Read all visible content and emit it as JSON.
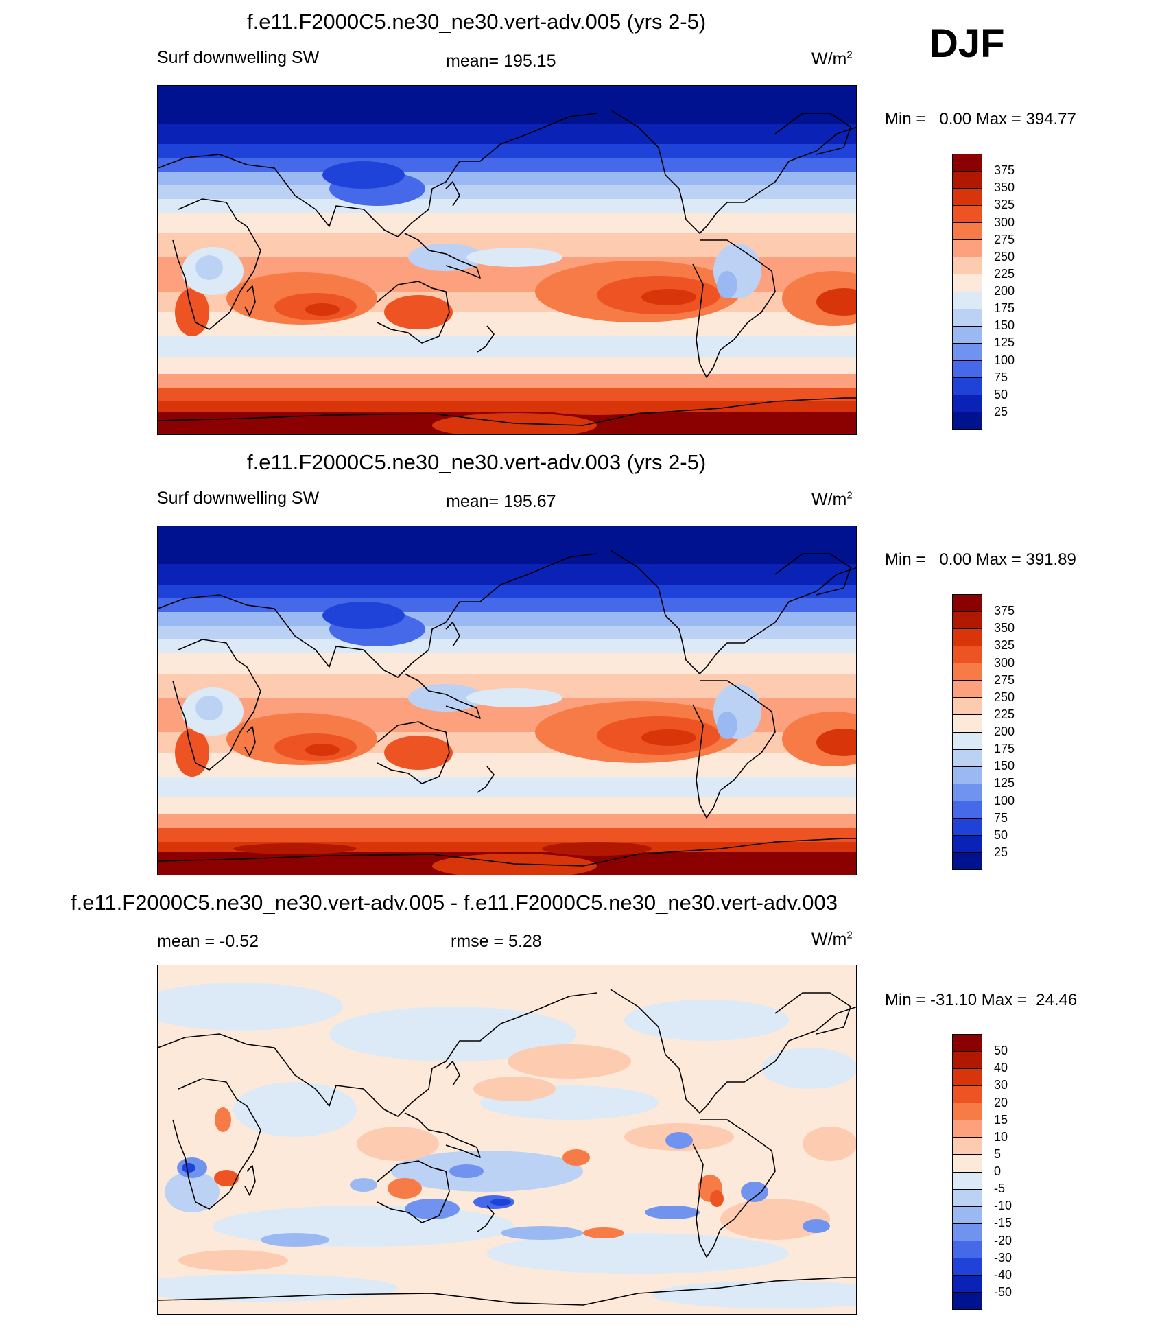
{
  "season": "DJF",
  "colors": {
    "abs_scale": [
      "#8b0000",
      "#b21800",
      "#d8360a",
      "#ee5423",
      "#f77b46",
      "#fca07d",
      "#fdcbaf",
      "#fde9da",
      "#dce9f7",
      "#bcd2f5",
      "#9ab9f3",
      "#6f93ef",
      "#4569e8",
      "#1f43d8",
      "#0a22b6",
      "#00128f"
    ],
    "diff_scale": [
      "#8b0000",
      "#b21800",
      "#d8360a",
      "#ee5423",
      "#f77b46",
      "#fca07d",
      "#fdcbaf",
      "#fde9da",
      "#dce9f7",
      "#bcd2f5",
      "#9ab9f3",
      "#6f93ef",
      "#4569e8",
      "#1f43d8",
      "#0a22b6",
      "#00128f"
    ],
    "coastline": "#000000"
  },
  "panels": [
    {
      "id": "case1",
      "title": "f.e11.F2000C5.ne30_ne30.vert-adv.005 (yrs 2-5)",
      "variable": "Surf downwelling SW",
      "stat_left": "",
      "stat_center": "mean= 195.15",
      "units": "W/m",
      "units_exp": "2",
      "min_label": "Min =",
      "min_value": "0.00",
      "max_label": "Max =",
      "max_value": "394.77",
      "colorbar_labels": [
        "375",
        "350",
        "325",
        "300",
        "275",
        "250",
        "225",
        "200",
        "175",
        "150",
        "125",
        "100",
        "75",
        "50",
        "25"
      ]
    },
    {
      "id": "case2",
      "title": "f.e11.F2000C5.ne30_ne30.vert-adv.003 (yrs 2-5)",
      "variable": "Surf downwelling SW",
      "stat_left": "",
      "stat_center": "mean= 195.67",
      "units": "W/m",
      "units_exp": "2",
      "min_label": "Min =",
      "min_value": "0.00",
      "max_label": "Max =",
      "max_value": "391.89",
      "colorbar_labels": [
        "375",
        "350",
        "325",
        "300",
        "275",
        "250",
        "225",
        "200",
        "175",
        "150",
        "125",
        "100",
        "75",
        "50",
        "25"
      ]
    },
    {
      "id": "difference",
      "title": "f.e11.F2000C5.ne30_ne30.vert-adv.005 - f.e11.F2000C5.ne30_ne30.vert-adv.003",
      "variable": "",
      "stat_left": "mean =  -0.52",
      "stat_center": "rmse =   5.28",
      "units": "W/m",
      "units_exp": "2",
      "min_label": "Min =",
      "min_value": "-31.10",
      "max_label": "Max =",
      "max_value": "24.46",
      "colorbar_labels": [
        "50",
        "40",
        "30",
        "20",
        "15",
        "10",
        "5",
        "0",
        "-5",
        "-10",
        "-15",
        "-20",
        "-30",
        "-40",
        "-50"
      ]
    }
  ]
}
